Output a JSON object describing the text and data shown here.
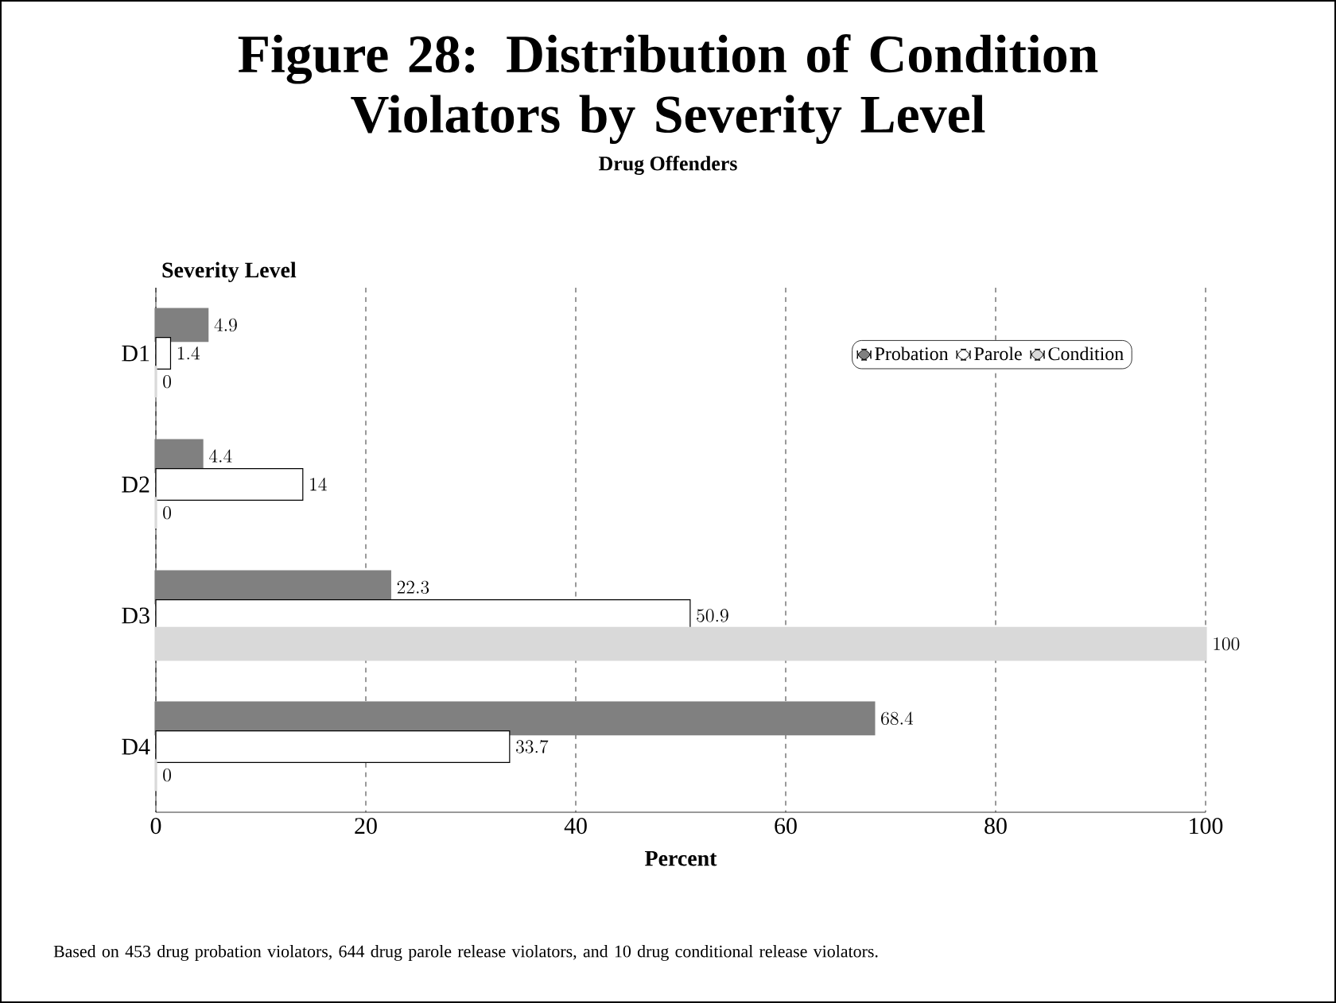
{
  "chart_data": {
    "type": "bar",
    "orientation": "horizontal",
    "title": "Figure 28: Distribution of Condition Violators by Severity Level",
    "subtitle": "Drug Offenders",
    "ylabel": "Severity Level",
    "xlabel": "Percent",
    "categories": [
      "D1",
      "D2",
      "D3",
      "D4"
    ],
    "series": [
      {
        "name": "Probation",
        "color": "#808080",
        "values": [
          4.9,
          4.4,
          22.3,
          68.4
        ]
      },
      {
        "name": "Parole",
        "color": "#ffffff",
        "values": [
          1.4,
          14,
          50.9,
          33.7
        ]
      },
      {
        "name": "Condition",
        "color": "#d9d9d9",
        "values": [
          0,
          0,
          100,
          0
        ]
      }
    ],
    "xlim": [
      0,
      100
    ],
    "xticks": [
      0,
      20,
      40,
      60,
      80,
      100
    ],
    "grid": "x",
    "legend": "top right",
    "data_labels": true,
    "annotations": [
      "Based on 453 drug probation violators, 644 drug parole release violators, and 10 drug conditional  release violators."
    ]
  }
}
